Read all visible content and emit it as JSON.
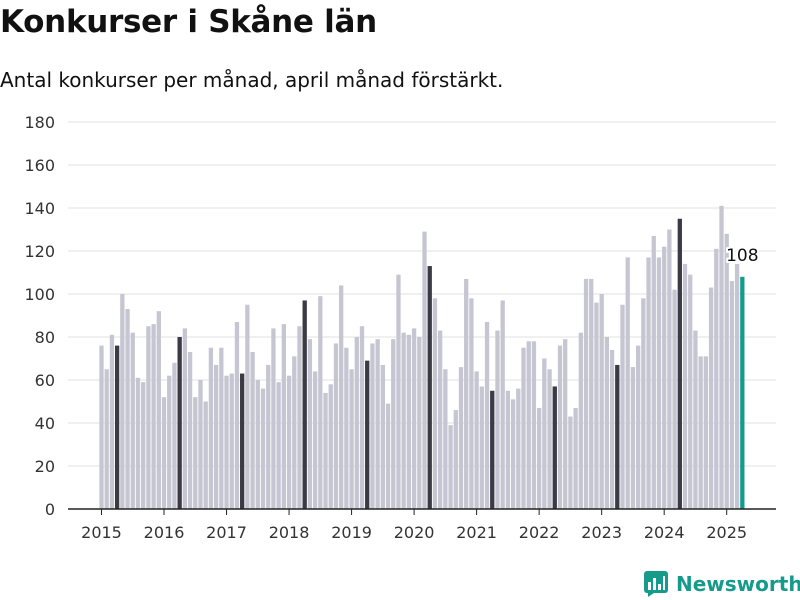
{
  "title": "Konkurser i Skåne län",
  "subtitle": "Antal konkurser per månad, april månad förstärkt.",
  "brand": "Newsworthy",
  "colors": {
    "bar": "#c6c6d2",
    "highlight": "#3b3a45",
    "latest": "#159a8c",
    "grid": "#e2e2e2",
    "brand": "#159a8c"
  },
  "chart_data": {
    "type": "bar",
    "title": "Konkurser i Skåne län",
    "subtitle": "Antal konkurser per månad, april månad förstärkt.",
    "xlabel": "",
    "ylabel": "",
    "ylim": [
      0,
      180
    ],
    "yticks": [
      "0",
      "20",
      "40",
      "60",
      "80",
      "100",
      "120",
      "140",
      "160",
      "180"
    ],
    "xticks": [
      "2015",
      "2016",
      "2017",
      "2018",
      "2019",
      "2020",
      "2021",
      "2022",
      "2023",
      "2024",
      "2025"
    ],
    "start": "2015-01",
    "highlight_month": "april",
    "grid": true,
    "annotation": {
      "label": "108",
      "month": "2025-04"
    },
    "values": [
      76,
      65,
      81,
      76,
      100,
      93,
      82,
      61,
      59,
      85,
      86,
      92,
      52,
      62,
      68,
      80,
      84,
      73,
      52,
      60,
      50,
      75,
      67,
      75,
      62,
      63,
      87,
      63,
      95,
      73,
      60,
      56,
      67,
      84,
      59,
      86,
      62,
      71,
      85,
      97,
      79,
      64,
      99,
      54,
      58,
      77,
      104,
      75,
      65,
      80,
      85,
      69,
      77,
      79,
      67,
      49,
      79,
      109,
      82,
      81,
      84,
      80,
      129,
      113,
      98,
      83,
      65,
      39,
      46,
      66,
      107,
      98,
      64,
      57,
      87,
      55,
      83,
      97,
      55,
      51,
      56,
      75,
      78,
      78,
      47,
      70,
      65,
      57,
      76,
      79,
      43,
      47,
      82,
      107,
      107,
      96,
      100,
      80,
      74,
      67,
      95,
      117,
      66,
      76,
      98,
      117,
      127,
      117,
      122,
      130,
      102,
      135,
      114,
      109,
      83,
      71,
      71,
      103,
      121,
      141,
      128,
      106,
      114,
      108
    ]
  }
}
